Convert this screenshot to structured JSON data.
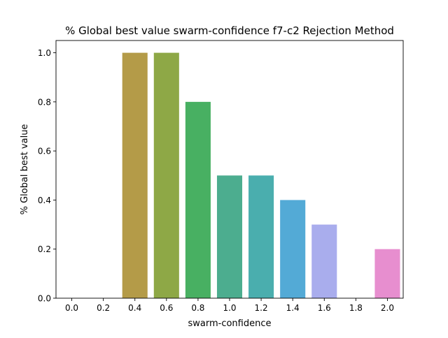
{
  "chart_data": {
    "type": "bar",
    "title": "% Global best value swarm-confidence f7-c2 Rejection Method",
    "xlabel": "swarm-confidence",
    "ylabel": "% Global best value",
    "categories": [
      "0.0",
      "0.2",
      "0.4",
      "0.6",
      "0.8",
      "1.0",
      "1.2",
      "1.4",
      "1.6",
      "1.8",
      "2.0"
    ],
    "values": [
      0.0,
      0.0,
      1.0,
      1.0,
      0.8,
      0.5,
      0.5,
      0.4,
      0.3,
      0.0,
      0.2
    ],
    "colors": [
      "#e1806a",
      "#c99b43",
      "#b49b48",
      "#8ea846",
      "#48b062",
      "#4cad8f",
      "#4aaeae",
      "#53aad6",
      "#a9aded",
      "#dc93e6",
      "#e78ecf"
    ],
    "ylim": [
      0,
      1.05
    ],
    "yticks": [
      "0.0",
      "0.2",
      "0.4",
      "0.6",
      "0.8",
      "1.0"
    ],
    "grid": false,
    "legend": "none"
  }
}
